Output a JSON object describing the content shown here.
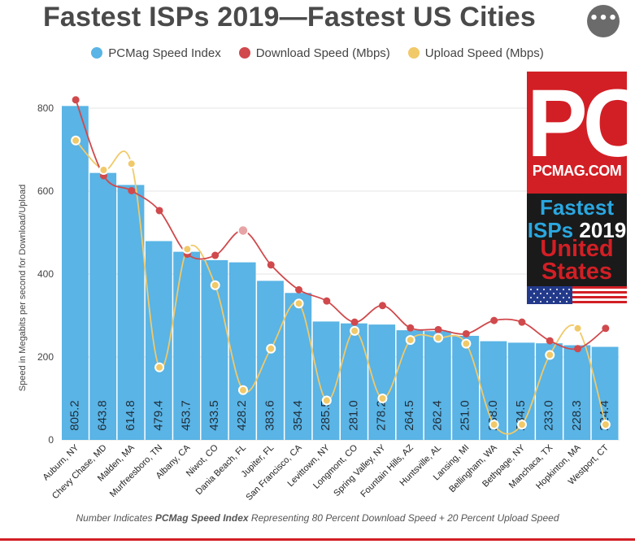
{
  "title": "Fastest ISPs 2019—Fastest US Cities",
  "menu_button_label": "•••",
  "caption": {
    "prefix": "Number Indicates ",
    "emphasis": "PCMag Speed Index",
    "suffix": " Representing 80 Percent Download Speed + 20 Percent Upload Speed"
  },
  "badge": {
    "logo": "PC",
    "site": "PCMAG.COM",
    "line1": "Fastest",
    "line2_a": "ISPs",
    "line2_b": "2019",
    "line3": "United",
    "line4": "States"
  },
  "colors": {
    "index": "#5ab4e5",
    "download": "#d0494c",
    "upload": "#f1c969",
    "brand_red": "#d21f25"
  },
  "chart_data": {
    "type": "bar",
    "title": "Fastest ISPs 2019—Fastest US Cities",
    "xlabel": "",
    "ylabel": "Speed in Megabits per second for Download/Upload",
    "ylim": [
      0,
      800
    ],
    "yticks": [
      0,
      200,
      400,
      600,
      800
    ],
    "grid": true,
    "legend_position": "top",
    "categories": [
      "Auburn, NY",
      "Chevy Chase, MD",
      "Malden, MA",
      "Murfreesboro, TN",
      "Albany, CA",
      "Niwot, CO",
      "Dania Beach, FL",
      "Jupiter, FL",
      "San Francisco, CA",
      "Levittown, NY",
      "Longmont, CO",
      "Spring Valley, NY",
      "Fountain Hills, AZ",
      "Huntsville, AL",
      "Lansing, MI",
      "Bellingham, WA",
      "Bethpage, NY",
      "Manchaca, TX",
      "Hopkinton, MA",
      "Westport, CT"
    ],
    "series": [
      {
        "name": "PCMag Speed Index",
        "type": "bar",
        "values": [
          805.2,
          643.8,
          614.8,
          479.4,
          453.7,
          433.5,
          428.2,
          383.6,
          354.4,
          285.5,
          281.0,
          278.2,
          264.5,
          262.4,
          251.0,
          238.0,
          234.5,
          233.0,
          228.3,
          224.4
        ],
        "labels": [
          "805.2",
          "643.8",
          "614.8",
          "479.4",
          "453.7",
          "433.5",
          "428.2",
          "383.6",
          "354.4",
          "285.5",
          "281.0",
          "278.2",
          "264.5",
          "262.4",
          "251.0",
          "238.0",
          "234.5",
          "233.0",
          "228.3",
          "224.4"
        ]
      },
      {
        "name": "Download Speed (Mbps)",
        "type": "line",
        "values": [
          820,
          637,
          601,
          553,
          448,
          445,
          505,
          422,
          362,
          335,
          284,
          324,
          270,
          266,
          256,
          288,
          284,
          239,
          220,
          269
        ]
      },
      {
        "name": "Upload Speed (Mbps)",
        "type": "line",
        "values": [
          722,
          651,
          666,
          175,
          460,
          373,
          120,
          220,
          329,
          95,
          263,
          100,
          241,
          246,
          232,
          37,
          37,
          205,
          269,
          37
        ]
      }
    ]
  }
}
